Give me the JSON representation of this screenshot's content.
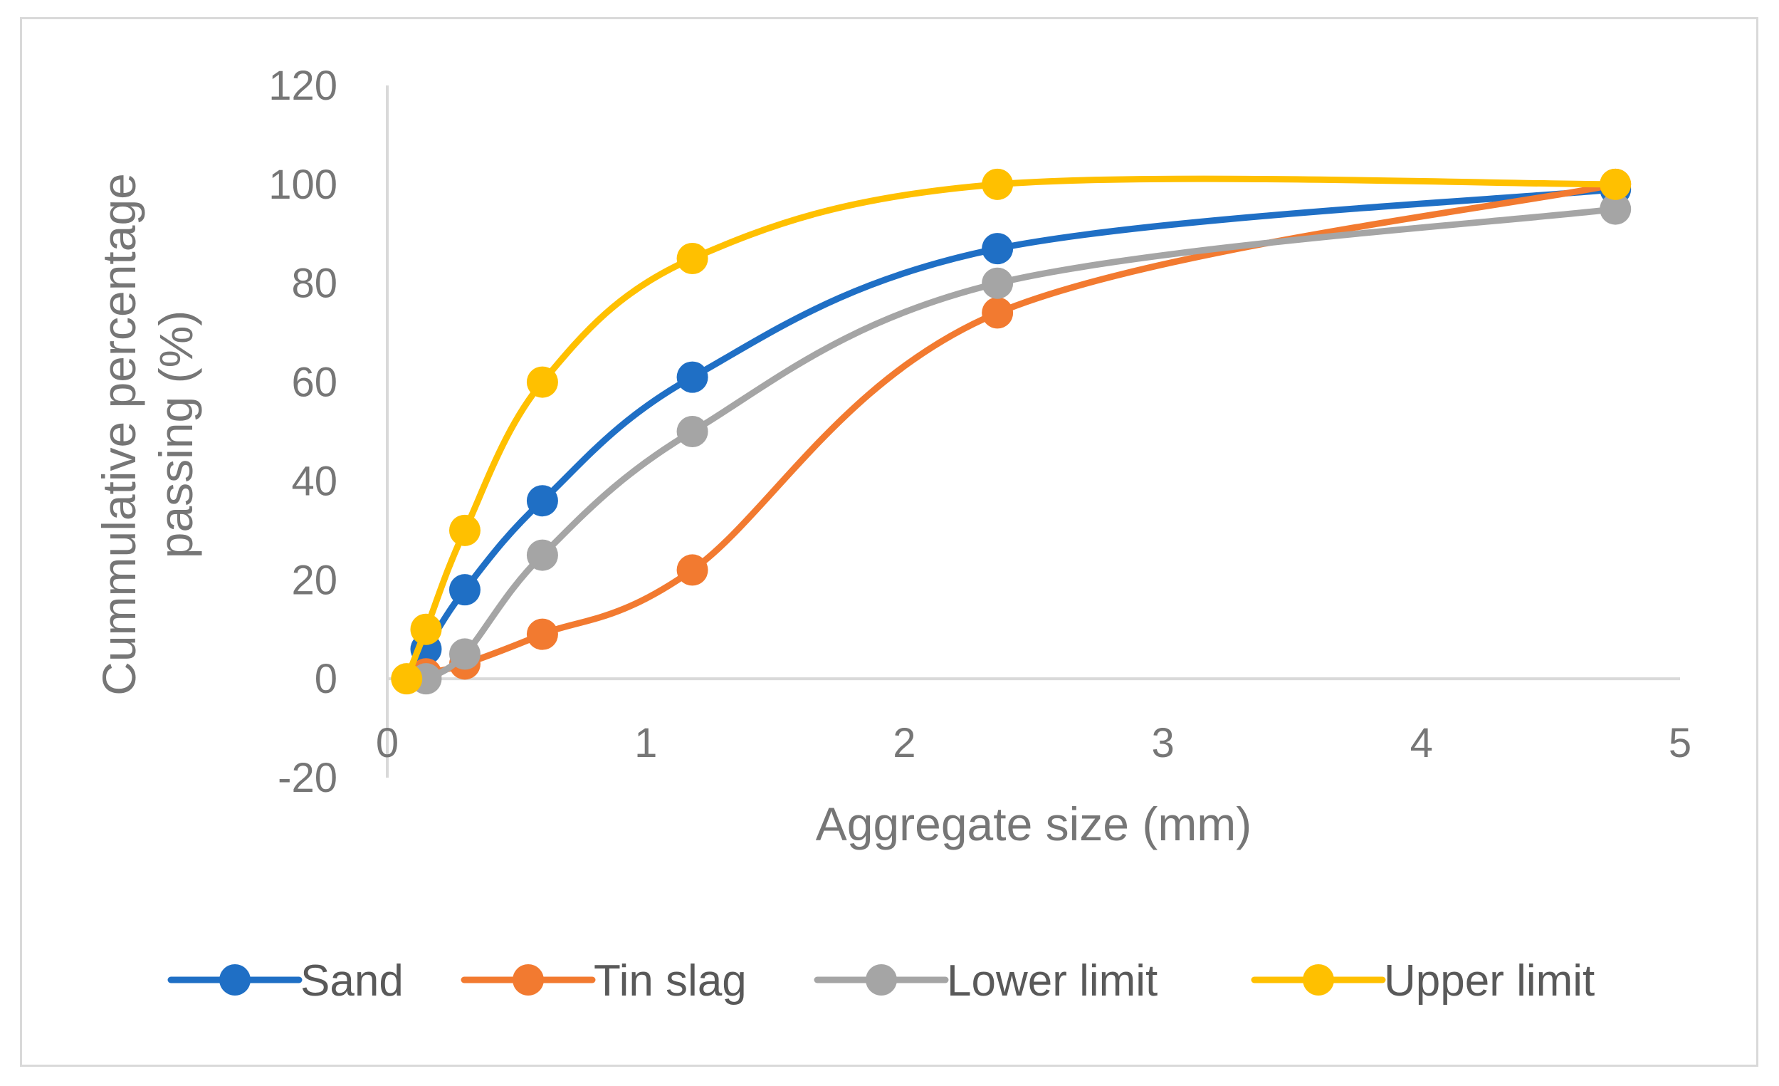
{
  "chart_data": {
    "type": "scatter",
    "xlabel": "Aggregate size (mm)",
    "ylabel_lines": [
      "Cummulative  percentage",
      "passing (%)"
    ],
    "xlim": [
      0,
      5
    ],
    "ylim": [
      -20,
      120
    ],
    "x_ticks": [
      "0",
      "1",
      "2",
      "3",
      "4",
      "5"
    ],
    "y_ticks": [
      "-20",
      "0",
      "20",
      "40",
      "60",
      "80",
      "100",
      "120"
    ],
    "grid": false,
    "smooth": true,
    "legend_position": "bottom",
    "series": [
      {
        "name": "Sand",
        "color": "#1f6fc5",
        "points": [
          [
            0.15,
            6
          ],
          [
            0.3,
            18
          ],
          [
            0.6,
            36
          ],
          [
            1.18,
            61
          ],
          [
            2.36,
            87
          ],
          [
            4.75,
            99
          ]
        ]
      },
      {
        "name": "Tin slag",
        "color": "#f27a30",
        "points": [
          [
            0.15,
            1
          ],
          [
            0.3,
            3
          ],
          [
            0.6,
            9
          ],
          [
            1.18,
            22
          ],
          [
            2.36,
            74
          ],
          [
            4.75,
            100
          ]
        ]
      },
      {
        "name": "Lower limit",
        "color": "#a5a5a5",
        "points": [
          [
            0.15,
            0
          ],
          [
            0.3,
            5
          ],
          [
            0.6,
            25
          ],
          [
            1.18,
            50
          ],
          [
            2.36,
            80
          ],
          [
            4.75,
            95
          ]
        ]
      },
      {
        "name": "Upper limit",
        "color": "#ffc000",
        "points": [
          [
            0.075,
            0
          ],
          [
            0.15,
            10
          ],
          [
            0.3,
            30
          ],
          [
            0.6,
            60
          ],
          [
            1.18,
            85
          ],
          [
            2.36,
            100
          ],
          [
            4.75,
            100
          ]
        ]
      }
    ]
  }
}
